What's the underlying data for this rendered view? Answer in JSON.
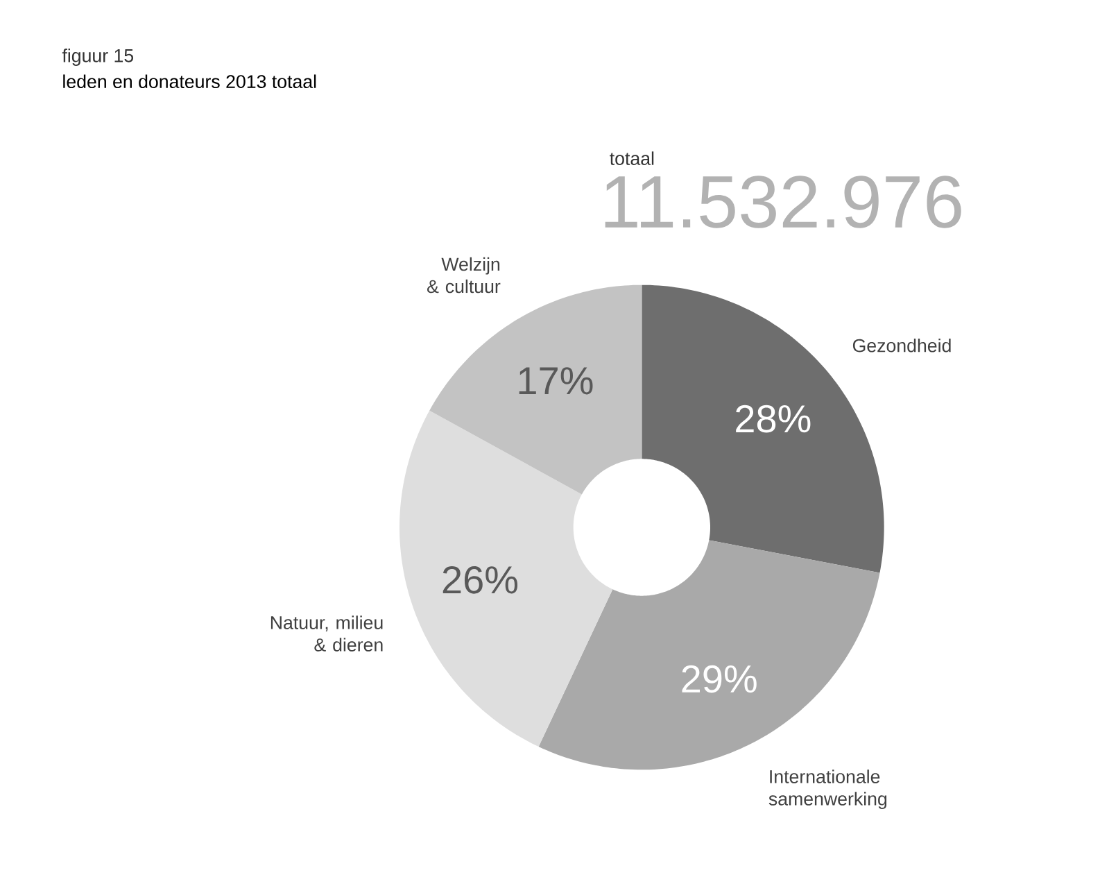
{
  "chart_data": {
    "type": "donut",
    "title": "figuur 15",
    "subtitle": "leden en donateurs 2013 totaal",
    "annotations": [
      "totaal",
      "11.532.976"
    ],
    "categories": [
      "Gezondheid",
      "Internationale samenwerking",
      "Natuur, milieu & dieren",
      "Welzijn & cultuur"
    ],
    "values": [
      28,
      29,
      26,
      17
    ],
    "value_labels": [
      "28%",
      "29%",
      "26%",
      "17%"
    ],
    "colors": [
      "#6e6e6e",
      "#a9a9a9",
      "#dedede",
      "#c3c3c3"
    ]
  }
}
